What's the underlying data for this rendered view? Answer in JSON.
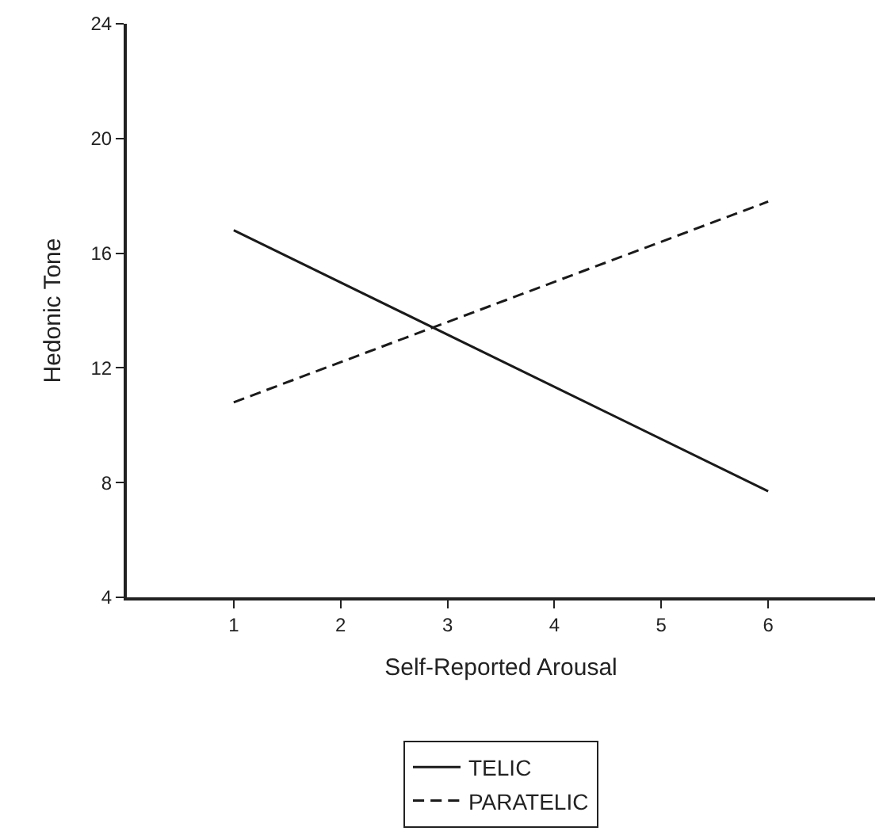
{
  "chart_data": {
    "type": "line",
    "xlabel": "Self-Reported Arousal",
    "ylabel": "Hedonic Tone",
    "x": [
      1,
      6
    ],
    "xlim": [
      0,
      7
    ],
    "xticks": [
      1,
      2,
      3,
      4,
      5,
      6
    ],
    "ylim": [
      4,
      24
    ],
    "yticks": [
      4,
      8,
      12,
      16,
      20,
      24
    ],
    "legend": "bottom",
    "marker": "none",
    "series": [
      {
        "name": "TELIC",
        "color": "#1a1a1a",
        "values": [
          16.8,
          7.7
        ],
        "line_style": "solid"
      },
      {
        "name": "PARATELIC",
        "color": "#1a1a1a",
        "values": [
          10.8,
          17.8
        ],
        "line_style": "dashed"
      }
    ]
  }
}
